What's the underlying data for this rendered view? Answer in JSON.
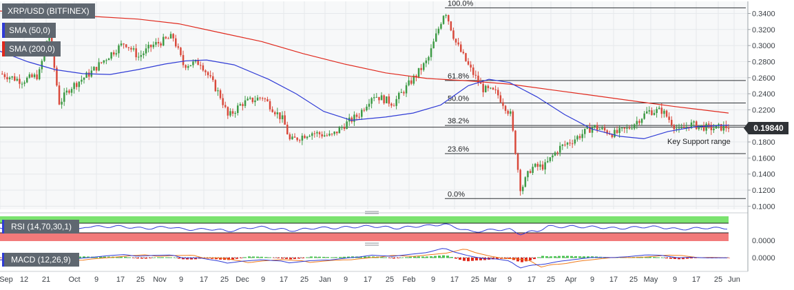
{
  "chart_data": [
    {
      "type": "candlestick",
      "title": "XRP/USD (BITFINEX)",
      "indicators": [
        {
          "name": "SMA (50,0)",
          "color": "#2f3bd6"
        },
        {
          "name": "SMA (200,0)",
          "color": "#e0281c"
        }
      ],
      "current_price": "0.19840",
      "yticks": [
        "0.3400",
        "0.3200",
        "0.3000",
        "0.2800",
        "0.2600",
        "0.2400",
        "0.2200",
        "0.1800",
        "0.1600",
        "0.1400",
        "0.1200",
        "0.1000"
      ],
      "ylim": [
        0.096,
        0.355
      ],
      "xticks": [
        "Sep",
        "12",
        "21",
        "Oct",
        "9",
        "17",
        "25",
        "Nov",
        "9",
        "17",
        "25",
        "Dec",
        "9",
        "17",
        "25",
        "Jan",
        "9",
        "17",
        "25",
        "Feb",
        "9",
        "17",
        "25",
        "Mar",
        "9",
        "17",
        "25",
        "Apr",
        "9",
        "17",
        "25",
        "May",
        "9",
        "17",
        "25",
        "Jun"
      ],
      "fibonacci": [
        {
          "label": "100.0%",
          "value": 0.347
        },
        {
          "label": "61.8%",
          "value": 0.2565
        },
        {
          "label": "50.0%",
          "value": 0.2285
        },
        {
          "label": "38.2%",
          "value": 0.2005
        },
        {
          "label": "23.6%",
          "value": 0.1655
        },
        {
          "label": "0.0%",
          "value": 0.1095
        }
      ],
      "annotation": "Key Support range",
      "sma200": [
        [
          0,
          0.343
        ],
        [
          60,
          0.34
        ],
        [
          120,
          0.337
        ],
        [
          200,
          0.333
        ],
        [
          260,
          0.327
        ],
        [
          320,
          0.316
        ],
        [
          380,
          0.305
        ],
        [
          440,
          0.29
        ],
        [
          500,
          0.277
        ],
        [
          560,
          0.266
        ],
        [
          620,
          0.259
        ],
        [
          680,
          0.256
        ],
        [
          740,
          0.252
        ],
        [
          800,
          0.245
        ],
        [
          860,
          0.238
        ],
        [
          920,
          0.231
        ],
        [
          980,
          0.224
        ],
        [
          1058,
          0.216
        ]
      ],
      "sma50": [
        [
          0,
          0.293
        ],
        [
          40,
          0.28
        ],
        [
          80,
          0.27
        ],
        [
          120,
          0.265
        ],
        [
          160,
          0.264
        ],
        [
          200,
          0.27
        ],
        [
          240,
          0.277
        ],
        [
          270,
          0.281
        ],
        [
          300,
          0.282
        ],
        [
          340,
          0.276
        ],
        [
          390,
          0.258
        ],
        [
          430,
          0.24
        ],
        [
          470,
          0.218
        ],
        [
          510,
          0.207
        ],
        [
          560,
          0.211
        ],
        [
          600,
          0.216
        ],
        [
          640,
          0.226
        ],
        [
          680,
          0.25
        ],
        [
          710,
          0.258
        ],
        [
          740,
          0.254
        ],
        [
          780,
          0.236
        ],
        [
          820,
          0.214
        ],
        [
          860,
          0.196
        ],
        [
          900,
          0.187
        ],
        [
          935,
          0.184
        ],
        [
          970,
          0.193
        ],
        [
          1010,
          0.199
        ],
        [
          1058,
          0.201
        ]
      ],
      "price_path": [
        [
          0,
          0.265
        ],
        [
          30,
          0.256
        ],
        [
          55,
          0.263
        ],
        [
          70,
          0.318
        ],
        [
          85,
          0.228
        ],
        [
          100,
          0.247
        ],
        [
          130,
          0.266
        ],
        [
          160,
          0.29
        ],
        [
          180,
          0.304
        ],
        [
          200,
          0.286
        ],
        [
          220,
          0.3
        ],
        [
          250,
          0.311
        ],
        [
          265,
          0.276
        ],
        [
          290,
          0.279
        ],
        [
          320,
          0.235
        ],
        [
          330,
          0.211
        ],
        [
          350,
          0.228
        ],
        [
          380,
          0.236
        ],
        [
          410,
          0.207
        ],
        [
          420,
          0.181
        ],
        [
          450,
          0.192
        ],
        [
          480,
          0.187
        ],
        [
          500,
          0.202
        ],
        [
          520,
          0.214
        ],
        [
          540,
          0.239
        ],
        [
          570,
          0.228
        ],
        [
          600,
          0.26
        ],
        [
          620,
          0.282
        ],
        [
          645,
          0.345
        ],
        [
          660,
          0.305
        ],
        [
          680,
          0.273
        ],
        [
          700,
          0.246
        ],
        [
          720,
          0.241
        ],
        [
          740,
          0.214
        ],
        [
          755,
          0.12
        ],
        [
          770,
          0.148
        ],
        [
          790,
          0.15
        ],
        [
          810,
          0.172
        ],
        [
          830,
          0.182
        ],
        [
          860,
          0.199
        ],
        [
          890,
          0.19
        ],
        [
          910,
          0.196
        ],
        [
          940,
          0.218
        ],
        [
          960,
          0.219
        ],
        [
          985,
          0.193
        ],
        [
          1000,
          0.202
        ],
        [
          1030,
          0.197
        ],
        [
          1058,
          0.199
        ]
      ],
      "rsi": {
        "label": "RSI (14,70,30,1)",
        "value_label": "0.0000"
      },
      "macd": {
        "label": "MACD (12,26,9)",
        "value_label": "0.0000"
      }
    }
  ]
}
